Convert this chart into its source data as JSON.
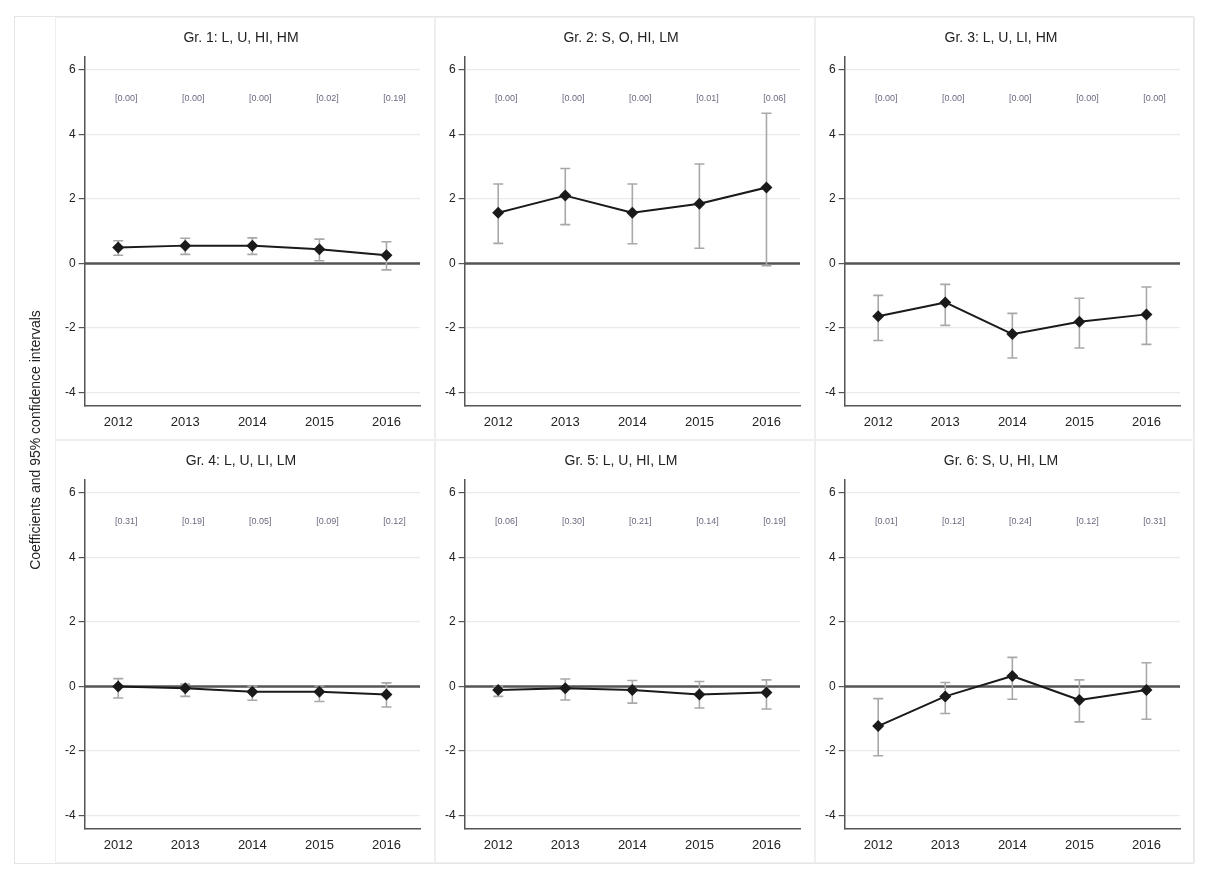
{
  "chart_data": [
    {
      "type": "line",
      "title": "Gr. 1: L, U, HI, HM",
      "ylabel": "Coefficients and 95% confidence intervals",
      "categories": [
        "2012",
        "2013",
        "2014",
        "2015",
        "2016"
      ],
      "color": "#1a1a1a",
      "values": [
        0.49,
        0.55,
        0.55,
        0.44,
        0.25
      ],
      "errors": [
        [
          0.25,
          0.7
        ],
        [
          0.28,
          0.78
        ],
        [
          0.28,
          0.79
        ],
        [
          0.08,
          0.75
        ],
        [
          -0.2,
          0.67
        ]
      ],
      "ylim": [
        -4.4,
        6.4
      ],
      "yticks": [
        -4,
        -2,
        0,
        2,
        4,
        6
      ],
      "grid": "y",
      "legend": false,
      "marker": "diamond",
      "ref_lines": [
        {
          "axis": "y",
          "value": 0,
          "color": "#555555"
        }
      ],
      "annotations": [
        "[0.00]",
        "[0.00]",
        "[0.00]",
        "[0.02]",
        "[0.19]"
      ]
    },
    {
      "type": "line",
      "title": "Gr. 2: S, O, HI, LM",
      "categories": [
        "2012",
        "2013",
        "2014",
        "2015",
        "2016"
      ],
      "color": "#1a1a1a",
      "values": [
        1.57,
        2.1,
        1.57,
        1.85,
        2.35
      ],
      "errors": [
        [
          0.62,
          2.46
        ],
        [
          1.2,
          2.94
        ],
        [
          0.61,
          2.46
        ],
        [
          0.47,
          3.08
        ],
        [
          -0.07,
          4.65
        ]
      ],
      "ylim": [
        -4.4,
        6.4
      ],
      "yticks": [
        -4,
        -2,
        0,
        2,
        4,
        6
      ],
      "grid": "y",
      "legend": false,
      "marker": "diamond",
      "ref_lines": [
        {
          "axis": "y",
          "value": 0,
          "color": "#555555"
        }
      ],
      "annotations": [
        "[0.00]",
        "[0.00]",
        "[0.00]",
        "[0.01]",
        "[0.06]"
      ]
    },
    {
      "type": "line",
      "title": "Gr. 3: L, U, LI, HM",
      "categories": [
        "2012",
        "2013",
        "2014",
        "2015",
        "2016"
      ],
      "color": "#1a1a1a",
      "values": [
        -1.64,
        -1.21,
        -2.19,
        -1.81,
        -1.58
      ],
      "errors": [
        [
          -2.39,
          -0.99
        ],
        [
          -1.92,
          -0.65
        ],
        [
          -2.93,
          -1.55
        ],
        [
          -2.62,
          -1.08
        ],
        [
          -2.51,
          -0.73
        ]
      ],
      "ylim": [
        -4.4,
        6.4
      ],
      "yticks": [
        -4,
        -2,
        0,
        2,
        4,
        6
      ],
      "grid": "y",
      "legend": false,
      "marker": "diamond",
      "ref_lines": [
        {
          "axis": "y",
          "value": 0,
          "color": "#555555"
        }
      ],
      "annotations": [
        "[0.00]",
        "[0.00]",
        "[0.00]",
        "[0.00]",
        "[0.00]"
      ]
    },
    {
      "type": "line",
      "title": "Gr. 4: L, U, LI, LM",
      "categories": [
        "2012",
        "2013",
        "2014",
        "2015",
        "2016"
      ],
      "color": "#1a1a1a",
      "values": [
        0.0,
        -0.06,
        -0.17,
        -0.17,
        -0.25
      ],
      "errors": [
        [
          -0.36,
          0.24
        ],
        [
          -0.31,
          0.07
        ],
        [
          -0.43,
          0.0
        ],
        [
          -0.47,
          0.01
        ],
        [
          -0.64,
          0.11
        ]
      ],
      "ylim": [
        -4.4,
        6.4
      ],
      "yticks": [
        -4,
        -2,
        0,
        2,
        4,
        6
      ],
      "grid": "y",
      "legend": false,
      "marker": "diamond",
      "ref_lines": [
        {
          "axis": "y",
          "value": 0,
          "color": "#555555"
        }
      ],
      "annotations": [
        "[0.31]",
        "[0.19]",
        "[0.05]",
        "[0.09]",
        "[0.12]"
      ]
    },
    {
      "type": "line",
      "title": "Gr. 5: L, U, HI, LM",
      "categories": [
        "2012",
        "2013",
        "2014",
        "2015",
        "2016"
      ],
      "color": "#1a1a1a",
      "values": [
        -0.11,
        -0.06,
        -0.11,
        -0.25,
        -0.19
      ],
      "errors": [
        [
          -0.31,
          0.0
        ],
        [
          -0.42,
          0.23
        ],
        [
          -0.52,
          0.18
        ],
        [
          -0.67,
          0.15
        ],
        [
          -0.7,
          0.2
        ]
      ],
      "ylim": [
        -4.4,
        6.4
      ],
      "yticks": [
        -4,
        -2,
        0,
        2,
        4,
        6
      ],
      "grid": "y",
      "legend": false,
      "marker": "diamond",
      "ref_lines": [
        {
          "axis": "y",
          "value": 0,
          "color": "#555555"
        }
      ],
      "annotations": [
        "[0.06]",
        "[0.30]",
        "[0.21]",
        "[0.14]",
        "[0.19]"
      ]
    },
    {
      "type": "line",
      "title": "Gr. 6: S, U, HI, LM",
      "categories": [
        "2012",
        "2013",
        "2014",
        "2015",
        "2016"
      ],
      "color": "#1a1a1a",
      "values": [
        -1.23,
        -0.31,
        0.32,
        -0.42,
        -0.11
      ],
      "errors": [
        [
          -2.15,
          -0.38
        ],
        [
          -0.84,
          0.12
        ],
        [
          -0.4,
          0.9
        ],
        [
          -1.1,
          0.2
        ],
        [
          -1.02,
          0.73
        ]
      ],
      "ylim": [
        -4.4,
        6.4
      ],
      "yticks": [
        -4,
        -2,
        0,
        2,
        4,
        6
      ],
      "grid": "y",
      "legend": false,
      "marker": "diamond",
      "ref_lines": [
        {
          "axis": "y",
          "value": 0,
          "color": "#555555"
        }
      ],
      "annotations": [
        "[0.01]",
        "[0.12]",
        "[0.24]",
        "[0.12]",
        "[0.31]"
      ]
    }
  ]
}
